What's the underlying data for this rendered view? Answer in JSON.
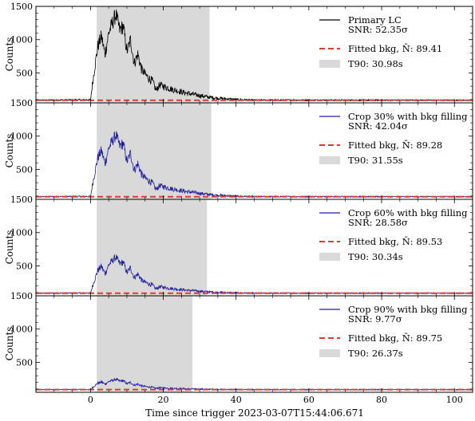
{
  "chart_data": {
    "type": "line",
    "xlabel": "Time since trigger 2023-03-07T15:44:06.671",
    "xlim": [
      -15,
      105
    ],
    "xticks": [
      0,
      20,
      40,
      60,
      80,
      100
    ],
    "ylabel": "Counts",
    "ylim": [
      50,
      1500
    ],
    "yticks": [
      500,
      1000,
      1500
    ],
    "yticks_labels": [
      "500",
      "1000",
      "1500"
    ],
    "grid": false,
    "legend_position": "upper right",
    "t90_band": {
      "color": "#d9d9d9"
    },
    "bkg_line": {
      "color": "#e03b2e"
    },
    "panels": [
      {
        "name": "Primary LC",
        "snr_text": "SNR: 52.35σ",
        "color": "#000000",
        "bkg_mean": 89.41,
        "bkg_legend": "Fitted bkg, N̄: 89.41",
        "t90_range": [
          1.7,
          32.7
        ],
        "t90_legend": "T90: 30.98s",
        "scale": 1.0
      },
      {
        "name": "Crop 30% with bkg filling",
        "snr_text": "SNR: 42.04σ",
        "color": "#1f1f9a",
        "bkg_mean": 89.28,
        "bkg_legend": "Fitted bkg, N̄: 89.28",
        "t90_range": [
          1.7,
          33.2
        ],
        "t90_legend": "T90: 31.55s",
        "scale": 0.72
      },
      {
        "name": "Crop 60% with bkg filling",
        "snr_text": "SNR: 28.58σ",
        "color": "#1f1f9a",
        "bkg_mean": 89.53,
        "bkg_legend": "Fitted bkg, N̄: 89.53",
        "t90_range": [
          1.7,
          32.0
        ],
        "t90_legend": "T90: 30.34s",
        "scale": 0.42
      },
      {
        "name": "Crop 90% with bkg filling",
        "snr_text": "SNR: 9.77σ",
        "color": "#1f1f9a",
        "bkg_mean": 89.75,
        "bkg_legend": "Fitted bkg, N̄: 89.75",
        "t90_range": [
          1.7,
          28.0
        ],
        "t90_legend": "T90: 26.37s",
        "scale": 0.12
      }
    ],
    "primary_lc_envelope": {
      "x": [
        -15,
        0,
        0.5,
        1,
        2,
        3,
        4,
        5,
        6,
        7,
        8,
        9,
        10,
        11,
        12,
        13,
        14,
        15,
        16,
        17,
        18,
        19,
        20,
        22,
        24,
        26,
        28,
        30,
        32,
        35,
        40,
        45,
        105
      ],
      "y": [
        90,
        95,
        320,
        520,
        900,
        1050,
        780,
        1100,
        1250,
        1380,
        1150,
        1200,
        820,
        1000,
        640,
        780,
        560,
        480,
        420,
        380,
        240,
        320,
        300,
        260,
        230,
        200,
        180,
        160,
        140,
        120,
        100,
        92,
        90
      ]
    }
  }
}
